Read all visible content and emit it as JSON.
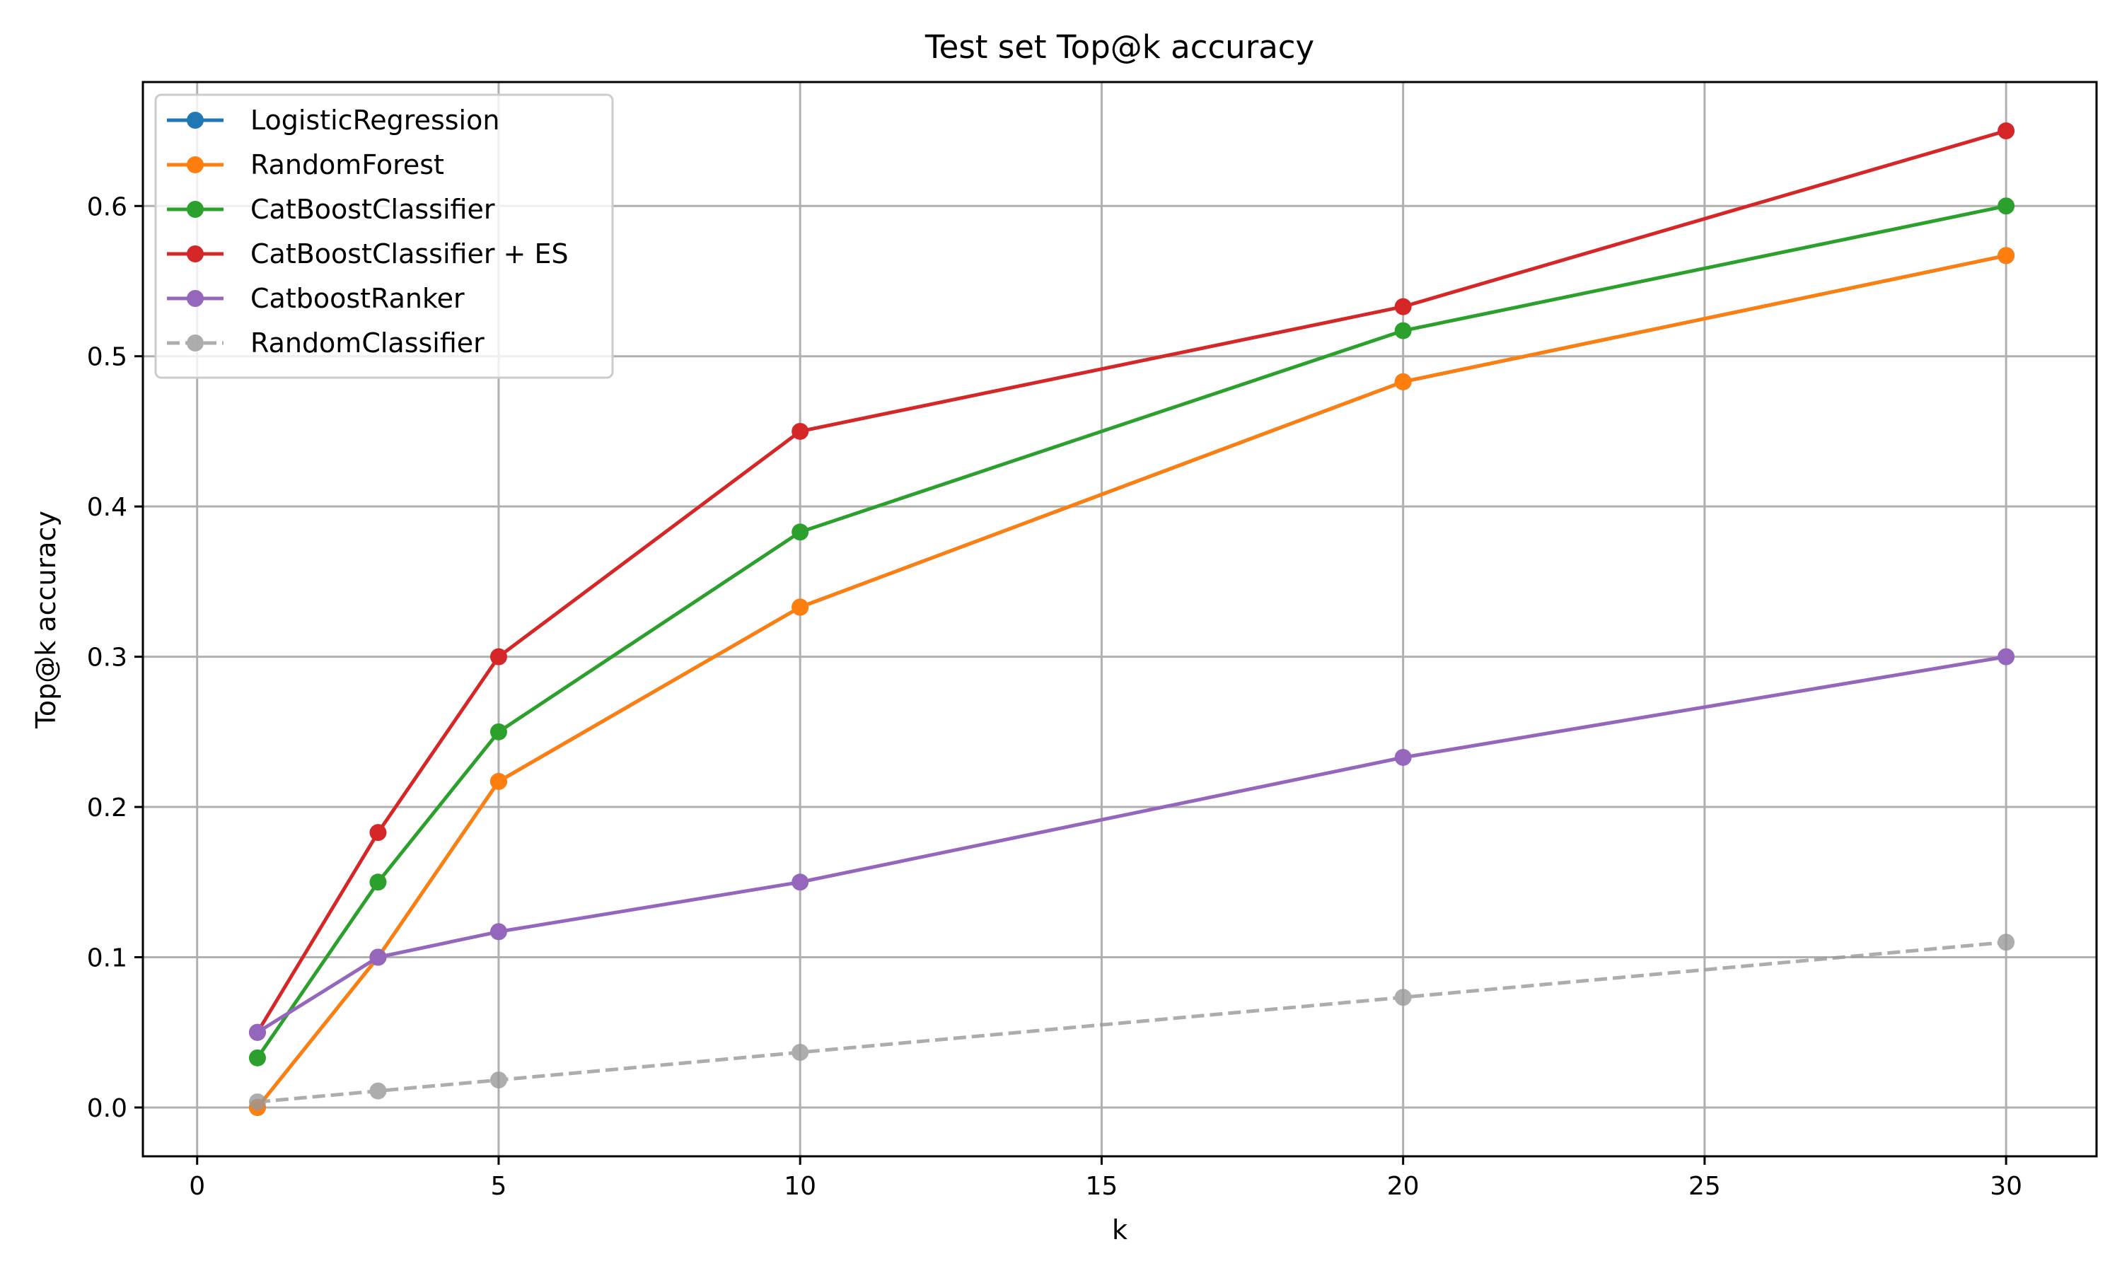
{
  "chart_data": {
    "type": "line",
    "title": "Test set Top@k accuracy",
    "xlabel": "k",
    "ylabel": "Top@k accuracy",
    "xlim": [
      -0.9,
      31.5
    ],
    "ylim": [
      -0.0325,
      0.6825
    ],
    "xticks": [
      0,
      5,
      10,
      15,
      20,
      25,
      30
    ],
    "yticks": [
      0.0,
      0.1,
      0.2,
      0.3,
      0.4,
      0.5,
      0.6
    ],
    "grid": true,
    "legend_position": "top-left",
    "x": [
      1,
      3,
      5,
      10,
      20,
      30
    ],
    "series": [
      {
        "name": "LogisticRegression",
        "color": "#1f77b4",
        "dashed": false,
        "values": [
          0.0,
          0.1,
          0.217,
          0.333,
          0.483,
          0.567
        ]
      },
      {
        "name": "RandomForest",
        "color": "#ff7f0e",
        "dashed": false,
        "values": [
          0.0,
          0.1,
          0.217,
          0.333,
          0.483,
          0.567
        ]
      },
      {
        "name": "CatBoostClassifier",
        "color": "#2ca02c",
        "dashed": false,
        "values": [
          0.033,
          0.15,
          0.25,
          0.383,
          0.517,
          0.6
        ]
      },
      {
        "name": "CatBoostClassifier + ES",
        "color": "#d62728",
        "dashed": false,
        "values": [
          0.05,
          0.183,
          0.3,
          0.45,
          0.533,
          0.65
        ]
      },
      {
        "name": "CatboostRanker",
        "color": "#9467bd",
        "dashed": false,
        "values": [
          0.05,
          0.1,
          0.117,
          0.15,
          0.233,
          0.3
        ]
      },
      {
        "name": "RandomClassifier",
        "color": "#999999",
        "dashed": true,
        "values": [
          0.0037,
          0.011,
          0.0183,
          0.0367,
          0.0733,
          0.11
        ]
      }
    ]
  }
}
